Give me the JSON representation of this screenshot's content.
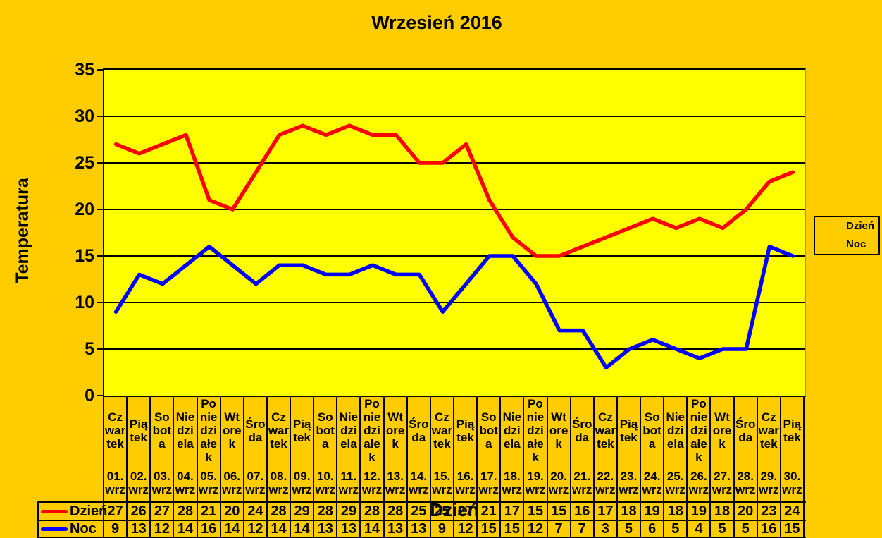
{
  "colors": {
    "background": "#FFCC00",
    "plot_background": "#FFFF00",
    "gridline": "#000000",
    "plot_border_right": "#8C8C8C",
    "text": "#000000",
    "series_dzien": "#FF0000",
    "series_noc": "#0000FF"
  },
  "chart_data": {
    "type": "line",
    "title": "Wrzesień 2016",
    "xlabel": "Dzień",
    "ylabel": "Temperatura",
    "ylim": [
      0,
      35
    ],
    "y_ticks": [
      0,
      5,
      10,
      15,
      20,
      25,
      30,
      35
    ],
    "grid": "horizontal-only",
    "legend_position": "right",
    "data_table_shown": true,
    "categories": [
      {
        "weekday": "Czwartek",
        "lines": [
          "Cz",
          "war",
          "tek"
        ],
        "date": [
          "01.",
          "wrz"
        ]
      },
      {
        "weekday": "Piątek",
        "lines": [
          "Pią",
          "tek"
        ],
        "date": [
          "02.",
          "wrz"
        ]
      },
      {
        "weekday": "Sobota",
        "lines": [
          "So",
          "bot",
          "a"
        ],
        "date": [
          "03.",
          "wrz"
        ]
      },
      {
        "weekday": "Niedziela",
        "lines": [
          "Nie",
          "dzi",
          "ela"
        ],
        "date": [
          "04.",
          "wrz"
        ]
      },
      {
        "weekday": "Poniedziałek",
        "lines": [
          "Po",
          "nie",
          "dzi",
          "ałe",
          "k"
        ],
        "date": [
          "05.",
          "wrz"
        ]
      },
      {
        "weekday": "Wtorek",
        "lines": [
          "Wt",
          "ore",
          "k"
        ],
        "date": [
          "06.",
          "wrz"
        ]
      },
      {
        "weekday": "Środa",
        "lines": [
          "Śro",
          "da"
        ],
        "date": [
          "07.",
          "wrz"
        ]
      },
      {
        "weekday": "Czwartek",
        "lines": [
          "Cz",
          "war",
          "tek"
        ],
        "date": [
          "08.",
          "wrz"
        ]
      },
      {
        "weekday": "Piątek",
        "lines": [
          "Pią",
          "tek"
        ],
        "date": [
          "09.",
          "wrz"
        ]
      },
      {
        "weekday": "Sobota",
        "lines": [
          "So",
          "bot",
          "a"
        ],
        "date": [
          "10.",
          "wrz"
        ]
      },
      {
        "weekday": "Niedziela",
        "lines": [
          "Nie",
          "dzi",
          "ela"
        ],
        "date": [
          "11.",
          "wrz"
        ]
      },
      {
        "weekday": "Poniedziałek",
        "lines": [
          "Po",
          "nie",
          "dzi",
          "ałe",
          "k"
        ],
        "date": [
          "12.",
          "wrz"
        ]
      },
      {
        "weekday": "Wtorek",
        "lines": [
          "Wt",
          "ore",
          "k"
        ],
        "date": [
          "13.",
          "wrz"
        ]
      },
      {
        "weekday": "Środa",
        "lines": [
          "Śro",
          "da"
        ],
        "date": [
          "14.",
          "wrz"
        ]
      },
      {
        "weekday": "Czwartek",
        "lines": [
          "Cz",
          "war",
          "tek"
        ],
        "date": [
          "15.",
          "wrz"
        ]
      },
      {
        "weekday": "Piątek",
        "lines": [
          "Pią",
          "tek"
        ],
        "date": [
          "16.",
          "wrz"
        ]
      },
      {
        "weekday": "Sobota",
        "lines": [
          "So",
          "bot",
          "a"
        ],
        "date": [
          "17.",
          "wrz"
        ]
      },
      {
        "weekday": "Niedziela",
        "lines": [
          "Nie",
          "dzi",
          "ela"
        ],
        "date": [
          "18.",
          "wrz"
        ]
      },
      {
        "weekday": "Poniedziałek",
        "lines": [
          "Po",
          "nie",
          "dzi",
          "ałe",
          "k"
        ],
        "date": [
          "19.",
          "wrz"
        ]
      },
      {
        "weekday": "Wtorek",
        "lines": [
          "Wt",
          "ore",
          "k"
        ],
        "date": [
          "20.",
          "wrz"
        ]
      },
      {
        "weekday": "Środa",
        "lines": [
          "Śro",
          "da"
        ],
        "date": [
          "21.",
          "wrz"
        ]
      },
      {
        "weekday": "Czwartek",
        "lines": [
          "Cz",
          "war",
          "tek"
        ],
        "date": [
          "22.",
          "wrz"
        ]
      },
      {
        "weekday": "Piątek",
        "lines": [
          "Pią",
          "tek"
        ],
        "date": [
          "23.",
          "wrz"
        ]
      },
      {
        "weekday": "Sobota",
        "lines": [
          "So",
          "bot",
          "a"
        ],
        "date": [
          "24.",
          "wrz"
        ]
      },
      {
        "weekday": "Niedziela",
        "lines": [
          "Nie",
          "dzi",
          "ela"
        ],
        "date": [
          "25.",
          "wrz"
        ]
      },
      {
        "weekday": "Poniedziałek",
        "lines": [
          "Po",
          "nie",
          "dzi",
          "ałe",
          "k"
        ],
        "date": [
          "26.",
          "wrz"
        ]
      },
      {
        "weekday": "Wtorek",
        "lines": [
          "Wt",
          "ore",
          "k"
        ],
        "date": [
          "27.",
          "wrz"
        ]
      },
      {
        "weekday": "Środa",
        "lines": [
          "Śro",
          "da"
        ],
        "date": [
          "28.",
          "wrz"
        ]
      },
      {
        "weekday": "Czwartek",
        "lines": [
          "Cz",
          "war",
          "tek"
        ],
        "date": [
          "29.",
          "wrz"
        ]
      },
      {
        "weekday": "Piątek",
        "lines": [
          "Pią",
          "tek"
        ],
        "date": [
          "30.",
          "wrz"
        ]
      }
    ],
    "series": [
      {
        "name": "Dzień",
        "color": "#FF0000",
        "values": [
          27,
          26,
          27,
          28,
          21,
          20,
          24,
          28,
          29,
          28,
          29,
          28,
          28,
          25,
          25,
          27,
          21,
          17,
          15,
          15,
          16,
          17,
          18,
          19,
          18,
          19,
          18,
          20,
          23,
          24
        ]
      },
      {
        "name": "Noc",
        "color": "#0000FF",
        "values": [
          9,
          13,
          12,
          14,
          16,
          14,
          12,
          14,
          14,
          13,
          13,
          14,
          13,
          13,
          9,
          12,
          15,
          15,
          12,
          7,
          7,
          3,
          5,
          6,
          5,
          4,
          5,
          5,
          16,
          15
        ]
      }
    ]
  }
}
